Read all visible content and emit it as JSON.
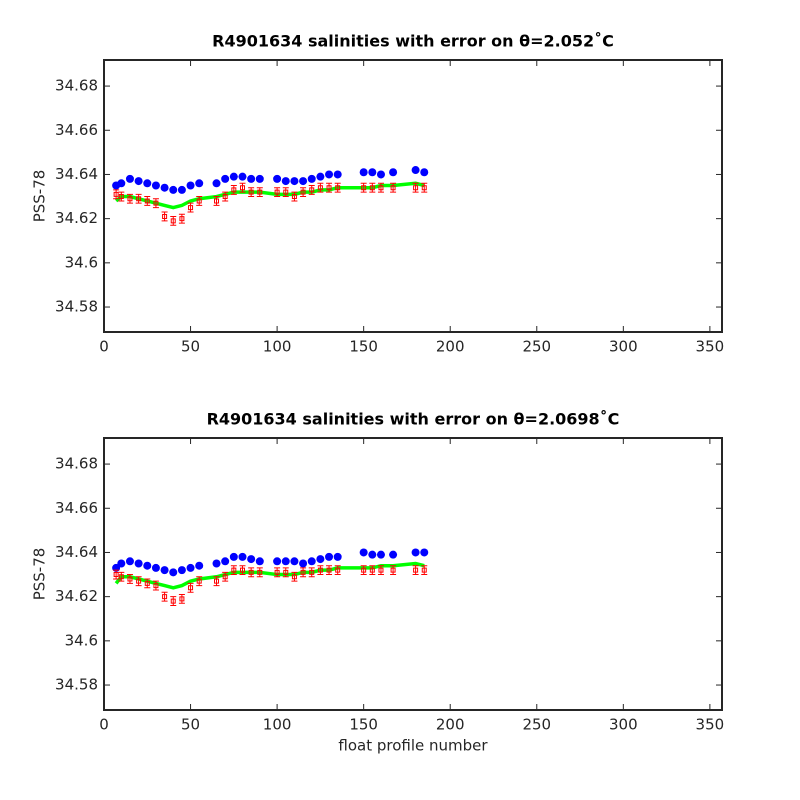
{
  "chart_data": [
    {
      "type": "scatter",
      "title": "R4901634 salinities with error on θ=2.052˚C",
      "ylabel": "PSS-78",
      "x": [
        7,
        10,
        15,
        20,
        25,
        30,
        35,
        40,
        45,
        50,
        55,
        65,
        70,
        75,
        80,
        85,
        90,
        100,
        105,
        110,
        115,
        120,
        125,
        130,
        135,
        150,
        155,
        160,
        167,
        180,
        185
      ],
      "series": [
        {
          "marker": "dot",
          "color": "#0000ff",
          "values": [
            34.635,
            34.636,
            34.638,
            34.637,
            34.636,
            34.635,
            34.634,
            34.633,
            34.633,
            34.635,
            34.636,
            34.636,
            34.638,
            34.639,
            34.639,
            34.638,
            34.638,
            34.638,
            34.637,
            34.637,
            34.637,
            34.638,
            34.639,
            34.64,
            34.64,
            34.641,
            34.641,
            34.64,
            34.641,
            34.642,
            34.641
          ]
        },
        {
          "marker": "errorbar",
          "color": "#ff0000",
          "values": [
            34.631,
            34.63,
            34.629,
            34.629,
            34.628,
            34.627,
            34.621,
            34.619,
            34.62,
            34.625,
            34.628,
            34.628,
            34.63,
            34.633,
            34.634,
            34.632,
            34.632,
            34.632,
            34.632,
            34.63,
            34.632,
            34.633,
            34.634,
            34.634,
            34.634,
            34.634,
            34.634,
            34.634,
            34.634,
            34.634,
            34.634
          ],
          "errors": [
            0.002,
            0.002,
            0.002,
            0.002,
            0.002,
            0.002,
            0.002,
            0.002,
            0.002,
            0.002,
            0.002,
            0.002,
            0.002,
            0.002,
            0.002,
            0.002,
            0.002,
            0.002,
            0.002,
            0.002,
            0.002,
            0.002,
            0.002,
            0.002,
            0.002,
            0.002,
            0.002,
            0.002,
            0.002,
            0.002,
            0.002
          ]
        },
        {
          "marker": "line",
          "color": "#00ff00",
          "values": [
            34.628,
            34.63,
            34.63,
            34.629,
            34.628,
            34.627,
            34.626,
            34.625,
            34.626,
            34.628,
            34.629,
            34.63,
            34.631,
            34.632,
            34.632,
            34.632,
            34.632,
            34.631,
            34.631,
            34.631,
            34.632,
            34.632,
            34.633,
            34.633,
            34.634,
            34.634,
            34.634,
            34.635,
            34.635,
            34.636,
            34.635
          ]
        }
      ],
      "xlim": [
        0,
        357
      ],
      "ylim": [
        34.5687,
        34.6918
      ],
      "xticks": [
        0,
        50,
        100,
        150,
        200,
        250,
        300,
        350
      ],
      "yticks": [
        34.58,
        34.6,
        34.62,
        34.64,
        34.66,
        34.68
      ]
    },
    {
      "type": "scatter",
      "title": "R4901634 salinities with error on θ=2.0698˚C",
      "ylabel": "PSS-78",
      "xlabel": "float profile number",
      "x": [
        7,
        10,
        15,
        20,
        25,
        30,
        35,
        40,
        45,
        50,
        55,
        65,
        70,
        75,
        80,
        85,
        90,
        100,
        105,
        110,
        115,
        120,
        125,
        130,
        135,
        150,
        155,
        160,
        167,
        180,
        185
      ],
      "series": [
        {
          "marker": "dot",
          "color": "#0000ff",
          "values": [
            34.633,
            34.635,
            34.636,
            34.635,
            34.634,
            34.633,
            34.632,
            34.631,
            34.632,
            34.633,
            34.634,
            34.635,
            34.636,
            34.638,
            34.638,
            34.637,
            34.636,
            34.636,
            34.636,
            34.636,
            34.635,
            34.636,
            34.637,
            34.638,
            34.638,
            34.64,
            34.639,
            34.639,
            34.639,
            34.64,
            34.64
          ]
        },
        {
          "marker": "errorbar",
          "color": "#ff0000",
          "values": [
            34.63,
            34.629,
            34.628,
            34.627,
            34.626,
            34.625,
            34.62,
            34.618,
            34.619,
            34.624,
            34.627,
            34.627,
            34.629,
            34.632,
            34.632,
            34.631,
            34.631,
            34.631,
            34.631,
            34.629,
            34.631,
            34.631,
            34.632,
            34.632,
            34.632,
            34.632,
            34.632,
            34.632,
            34.632,
            34.632,
            34.632
          ],
          "errors": [
            0.002,
            0.002,
            0.002,
            0.002,
            0.002,
            0.002,
            0.002,
            0.002,
            0.002,
            0.002,
            0.002,
            0.002,
            0.002,
            0.002,
            0.002,
            0.002,
            0.002,
            0.002,
            0.002,
            0.002,
            0.002,
            0.002,
            0.002,
            0.002,
            0.002,
            0.002,
            0.002,
            0.002,
            0.002,
            0.002,
            0.002
          ]
        },
        {
          "marker": "line",
          "color": "#00ff00",
          "values": [
            34.626,
            34.629,
            34.629,
            34.628,
            34.627,
            34.626,
            34.625,
            34.624,
            34.625,
            34.627,
            34.628,
            34.629,
            34.63,
            34.631,
            34.631,
            34.631,
            34.631,
            34.63,
            34.63,
            34.63,
            34.631,
            34.631,
            34.632,
            34.632,
            34.633,
            34.633,
            34.633,
            34.634,
            34.634,
            34.635,
            34.634
          ]
        }
      ],
      "xlim": [
        0,
        357
      ],
      "ylim": [
        34.5687,
        34.6918
      ],
      "xticks": [
        0,
        50,
        100,
        150,
        200,
        250,
        300,
        350
      ],
      "yticks": [
        34.58,
        34.6,
        34.62,
        34.64,
        34.66,
        34.68
      ]
    }
  ]
}
